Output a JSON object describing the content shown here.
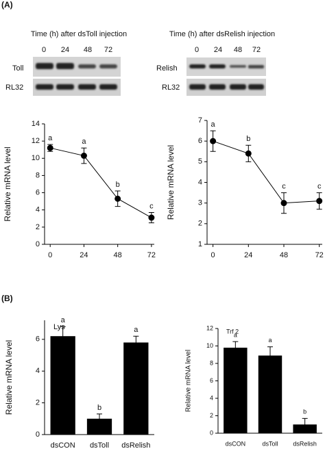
{
  "panels": [
    "(A)",
    "(B)"
  ],
  "gels": [
    {
      "title": "Time (h) after dsToll injection",
      "lanes": [
        "0",
        "24",
        "48",
        "72"
      ],
      "rows": [
        "Toll",
        "RL32"
      ]
    },
    {
      "title": "Time (h) after dsRelish injection",
      "lanes": [
        "0",
        "24",
        "48",
        "72"
      ],
      "rows": [
        "Relish",
        "RL32"
      ]
    }
  ],
  "chart_data": [
    {
      "type": "line",
      "y_label": "Relative mRNA level",
      "x": [
        0,
        24,
        48,
        72
      ],
      "values": [
        11.2,
        10.3,
        5.3,
        3.1
      ],
      "errors": [
        0.4,
        0.9,
        0.9,
        0.6
      ],
      "annotations": [
        "a",
        "a",
        "b",
        "c"
      ],
      "xlim": [
        -4,
        74
      ],
      "xticks": [
        0,
        24,
        48,
        72
      ],
      "ylim": [
        0,
        14
      ],
      "yticks": [
        0,
        2,
        4,
        6,
        8,
        10,
        12,
        14
      ],
      "color": "#000000"
    },
    {
      "type": "line",
      "y_label": "Relative mRNA level",
      "x": [
        0,
        24,
        48,
        72
      ],
      "values": [
        6.0,
        5.4,
        3.0,
        3.1
      ],
      "errors": [
        0.5,
        0.4,
        0.5,
        0.4
      ],
      "annotations": [
        "a",
        "b",
        "c",
        "c"
      ],
      "xlim": [
        -4,
        74
      ],
      "xticks": [
        0,
        24,
        48,
        72
      ],
      "ylim": [
        1,
        7
      ],
      "yticks": [
        1,
        2,
        3,
        4,
        5,
        6,
        7
      ],
      "color": "#000000"
    },
    {
      "type": "bar",
      "label": "Lys",
      "y_label": "Relative mRNA level",
      "categories": [
        "dsCON",
        "dsToll",
        "dsRelish"
      ],
      "values": [
        6.2,
        1.0,
        5.8
      ],
      "errors": [
        0.6,
        0.3,
        0.4
      ],
      "annotations": [
        "a",
        "b",
        "a"
      ],
      "ylim": [
        0,
        7.2
      ],
      "yticks": [
        0,
        2,
        4,
        6
      ],
      "color": "#000000"
    },
    {
      "type": "bar",
      "label": "Trf 2",
      "y_label": "Relative mRNA level",
      "categories": [
        "dsCON",
        "dsToll",
        "dsRelish"
      ],
      "values": [
        9.8,
        8.9,
        1.0
      ],
      "errors": [
        0.7,
        1.0,
        0.7
      ],
      "annotations": [
        "a",
        "a",
        "b"
      ],
      "ylim": [
        0,
        12
      ],
      "yticks": [
        0,
        2,
        4,
        6,
        8,
        10,
        12
      ],
      "color": "#000000"
    }
  ]
}
